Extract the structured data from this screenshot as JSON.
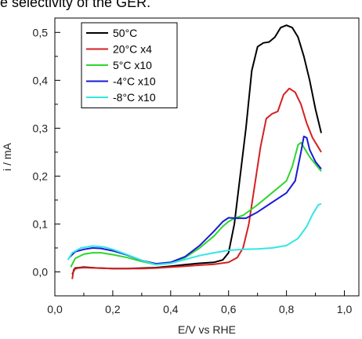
{
  "caption": "e selectivity of the GER.",
  "chart_data": {
    "type": "line",
    "title": "",
    "xlabel": "E/V vs RHE",
    "ylabel": "i / mA",
    "xlim": [
      0.0,
      1.05
    ],
    "ylim": [
      -0.05,
      0.53
    ],
    "xticks": [
      "0,0",
      "0,2",
      "0,4",
      "0,6",
      "0,8",
      "1,0"
    ],
    "yticks": [
      "0,0",
      "0,1",
      "0,2",
      "0,3",
      "0,4",
      "0,5"
    ],
    "grid": false,
    "legend_position": "top-left",
    "series": [
      {
        "name": "50°C",
        "color": "#000000",
        "points": [
          [
            0.06,
            -0.005
          ],
          [
            0.07,
            0.008
          ],
          [
            0.1,
            0.01
          ],
          [
            0.15,
            0.008
          ],
          [
            0.2,
            0.007
          ],
          [
            0.25,
            0.007
          ],
          [
            0.3,
            0.008
          ],
          [
            0.35,
            0.009
          ],
          [
            0.4,
            0.012
          ],
          [
            0.45,
            0.015
          ],
          [
            0.5,
            0.018
          ],
          [
            0.55,
            0.02
          ],
          [
            0.58,
            0.025
          ],
          [
            0.6,
            0.04
          ],
          [
            0.62,
            0.1
          ],
          [
            0.64,
            0.2
          ],
          [
            0.66,
            0.3
          ],
          [
            0.68,
            0.42
          ],
          [
            0.7,
            0.47
          ],
          [
            0.72,
            0.478
          ],
          [
            0.74,
            0.48
          ],
          [
            0.76,
            0.49
          ],
          [
            0.78,
            0.51
          ],
          [
            0.8,
            0.515
          ],
          [
            0.82,
            0.51
          ],
          [
            0.84,
            0.49
          ],
          [
            0.86,
            0.45
          ],
          [
            0.88,
            0.4
          ],
          [
            0.9,
            0.34
          ],
          [
            0.92,
            0.29
          ]
        ]
      },
      {
        "name": "20°C x4",
        "color": "#d62020",
        "points": [
          [
            0.06,
            -0.015
          ],
          [
            0.065,
            0.005
          ],
          [
            0.08,
            0.008
          ],
          [
            0.1,
            0.009
          ],
          [
            0.15,
            0.008
          ],
          [
            0.2,
            0.007
          ],
          [
            0.25,
            0.007
          ],
          [
            0.3,
            0.007
          ],
          [
            0.35,
            0.008
          ],
          [
            0.4,
            0.01
          ],
          [
            0.45,
            0.012
          ],
          [
            0.5,
            0.014
          ],
          [
            0.55,
            0.016
          ],
          [
            0.6,
            0.02
          ],
          [
            0.63,
            0.03
          ],
          [
            0.65,
            0.05
          ],
          [
            0.67,
            0.1
          ],
          [
            0.69,
            0.18
          ],
          [
            0.71,
            0.26
          ],
          [
            0.73,
            0.32
          ],
          [
            0.75,
            0.33
          ],
          [
            0.77,
            0.335
          ],
          [
            0.79,
            0.37
          ],
          [
            0.81,
            0.383
          ],
          [
            0.83,
            0.375
          ],
          [
            0.85,
            0.35
          ],
          [
            0.87,
            0.31
          ],
          [
            0.89,
            0.28
          ],
          [
            0.91,
            0.26
          ],
          [
            0.92,
            0.25
          ]
        ]
      },
      {
        "name": "5°C x10",
        "color": "#2ed62e",
        "points": [
          [
            0.055,
            0.01
          ],
          [
            0.07,
            0.028
          ],
          [
            0.1,
            0.037
          ],
          [
            0.13,
            0.04
          ],
          [
            0.16,
            0.04
          ],
          [
            0.2,
            0.036
          ],
          [
            0.25,
            0.03
          ],
          [
            0.3,
            0.022
          ],
          [
            0.35,
            0.015
          ],
          [
            0.4,
            0.018
          ],
          [
            0.45,
            0.03
          ],
          [
            0.5,
            0.05
          ],
          [
            0.55,
            0.075
          ],
          [
            0.58,
            0.095
          ],
          [
            0.6,
            0.105
          ],
          [
            0.62,
            0.112
          ],
          [
            0.65,
            0.118
          ],
          [
            0.7,
            0.14
          ],
          [
            0.75,
            0.165
          ],
          [
            0.8,
            0.19
          ],
          [
            0.82,
            0.22
          ],
          [
            0.84,
            0.265
          ],
          [
            0.85,
            0.27
          ],
          [
            0.86,
            0.26
          ],
          [
            0.88,
            0.24
          ],
          [
            0.9,
            0.225
          ],
          [
            0.92,
            0.21
          ]
        ]
      },
      {
        "name": "-4°C x10",
        "color": "#1a1ad6",
        "points": [
          [
            0.05,
            0.03
          ],
          [
            0.07,
            0.042
          ],
          [
            0.1,
            0.047
          ],
          [
            0.13,
            0.05
          ],
          [
            0.16,
            0.049
          ],
          [
            0.2,
            0.044
          ],
          [
            0.25,
            0.035
          ],
          [
            0.3,
            0.024
          ],
          [
            0.35,
            0.017
          ],
          [
            0.4,
            0.02
          ],
          [
            0.45,
            0.032
          ],
          [
            0.5,
            0.055
          ],
          [
            0.55,
            0.085
          ],
          [
            0.58,
            0.105
          ],
          [
            0.6,
            0.113
          ],
          [
            0.63,
            0.112
          ],
          [
            0.66,
            0.112
          ],
          [
            0.7,
            0.125
          ],
          [
            0.75,
            0.145
          ],
          [
            0.8,
            0.165
          ],
          [
            0.83,
            0.19
          ],
          [
            0.85,
            0.25
          ],
          [
            0.86,
            0.283
          ],
          [
            0.87,
            0.28
          ],
          [
            0.88,
            0.255
          ],
          [
            0.9,
            0.23
          ],
          [
            0.92,
            0.215
          ]
        ]
      },
      {
        "name": "-8°C x10",
        "color": "#33e6e6",
        "points": [
          [
            0.045,
            0.025
          ],
          [
            0.06,
            0.04
          ],
          [
            0.09,
            0.05
          ],
          [
            0.13,
            0.054
          ],
          [
            0.17,
            0.052
          ],
          [
            0.2,
            0.047
          ],
          [
            0.25,
            0.036
          ],
          [
            0.3,
            0.024
          ],
          [
            0.35,
            0.015
          ],
          [
            0.4,
            0.018
          ],
          [
            0.45,
            0.026
          ],
          [
            0.5,
            0.034
          ],
          [
            0.55,
            0.04
          ],
          [
            0.6,
            0.045
          ],
          [
            0.65,
            0.047
          ],
          [
            0.7,
            0.048
          ],
          [
            0.75,
            0.05
          ],
          [
            0.8,
            0.055
          ],
          [
            0.84,
            0.07
          ],
          [
            0.87,
            0.095
          ],
          [
            0.89,
            0.12
          ],
          [
            0.91,
            0.14
          ],
          [
            0.92,
            0.142
          ]
        ]
      }
    ]
  }
}
